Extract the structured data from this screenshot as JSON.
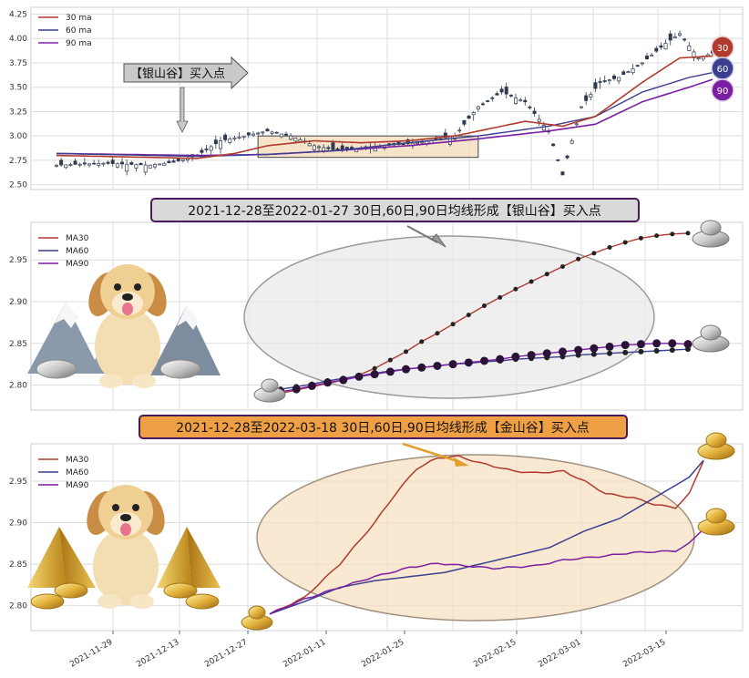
{
  "chart_data": [
    {
      "type": "candlestick",
      "legend": {
        "placement": "top-left",
        "entries": [
          "30 ma",
          "60 ma",
          "90 ma"
        ]
      },
      "y_ticks": [
        "4.25",
        "4.00",
        "3.75",
        "3.50",
        "3.25",
        "3.00",
        "2.75",
        "2.50"
      ],
      "ylim": [
        2.45,
        4.32
      ],
      "grid": true,
      "annotation": "【银山谷】买入点",
      "badges": [
        "30",
        "60",
        "90"
      ],
      "series_colors": {
        "ma30": "#b03a2e",
        "ma60": "#3b3f8f",
        "ma90": "#7a1fa2"
      },
      "n": 140,
      "close_anchors": [
        [
          0,
          2.7
        ],
        [
          10,
          2.72
        ],
        [
          20,
          2.7
        ],
        [
          25,
          2.73
        ],
        [
          30,
          2.8
        ],
        [
          35,
          2.95
        ],
        [
          40,
          3.0
        ],
        [
          45,
          3.05
        ],
        [
          50,
          3.0
        ],
        [
          55,
          2.9
        ],
        [
          60,
          2.85
        ],
        [
          65,
          2.87
        ],
        [
          70,
          2.9
        ],
        [
          75,
          2.92
        ],
        [
          80,
          2.95
        ],
        [
          85,
          3.0
        ],
        [
          90,
          3.3
        ],
        [
          95,
          3.45
        ],
        [
          100,
          3.35
        ],
        [
          105,
          3.05
        ],
        [
          108,
          2.6
        ],
        [
          112,
          3.3
        ],
        [
          116,
          3.55
        ],
        [
          120,
          3.6
        ],
        [
          125,
          3.75
        ],
        [
          130,
          3.95
        ],
        [
          133,
          4.05
        ],
        [
          137,
          3.8
        ],
        [
          140,
          3.85
        ]
      ],
      "ma30_anchors": [
        [
          0,
          2.8
        ],
        [
          20,
          2.78
        ],
        [
          30,
          2.77
        ],
        [
          38,
          2.82
        ],
        [
          45,
          2.9
        ],
        [
          55,
          2.95
        ],
        [
          65,
          2.93
        ],
        [
          75,
          2.95
        ],
        [
          85,
          3.0
        ],
        [
          90,
          3.05
        ],
        [
          100,
          3.15
        ],
        [
          108,
          3.1
        ],
        [
          115,
          3.2
        ],
        [
          125,
          3.55
        ],
        [
          133,
          3.8
        ],
        [
          140,
          3.82
        ]
      ],
      "ma60_anchors": [
        [
          0,
          2.82
        ],
        [
          30,
          2.79
        ],
        [
          45,
          2.81
        ],
        [
          60,
          2.85
        ],
        [
          75,
          2.93
        ],
        [
          90,
          3.0
        ],
        [
          105,
          3.1
        ],
        [
          115,
          3.2
        ],
        [
          125,
          3.45
        ],
        [
          135,
          3.6
        ],
        [
          140,
          3.65
        ]
      ],
      "ma90_anchors": [
        [
          0,
          2.82
        ],
        [
          30,
          2.8
        ],
        [
          45,
          2.81
        ],
        [
          60,
          2.85
        ],
        [
          75,
          2.9
        ],
        [
          90,
          2.97
        ],
        [
          105,
          3.05
        ],
        [
          115,
          3.12
        ],
        [
          125,
          3.35
        ],
        [
          135,
          3.5
        ],
        [
          140,
          3.58
        ]
      ],
      "highlight_box": {
        "x_from": 43,
        "x_to": 90,
        "y_from": 2.78,
        "y_to": 3.0
      }
    },
    {
      "type": "line",
      "title": "2021-12-28至2022-01-27 30日,60日,90日均线形成【银山谷】买入点",
      "legend": {
        "placement": "top-left",
        "entries": [
          "MA30",
          "MA60",
          "MA90"
        ]
      },
      "y_ticks": [
        "2.95",
        "2.90",
        "2.85",
        "2.80"
      ],
      "ylim": [
        2.77,
        2.995
      ],
      "grid": true,
      "series": [
        {
          "name": "MA30",
          "color": "#b03a2e",
          "values": [
            2.79,
            2.794,
            2.798,
            2.802,
            2.806,
            2.812,
            2.82,
            2.83,
            2.84,
            2.852,
            2.862,
            2.873,
            2.884,
            2.895,
            2.905,
            2.915,
            2.924,
            2.933,
            2.942,
            2.951,
            2.958,
            2.965,
            2.971,
            2.976,
            2.979,
            2.981,
            2.982
          ]
        },
        {
          "name": "MA60",
          "color": "#3b3f8f",
          "values": [
            2.795,
            2.798,
            2.801,
            2.805,
            2.808,
            2.811,
            2.814,
            2.817,
            2.819,
            2.821,
            2.823,
            2.825,
            2.826,
            2.828,
            2.829,
            2.831,
            2.832,
            2.833,
            2.834,
            2.836,
            2.837,
            2.838,
            2.839,
            2.84,
            2.841,
            2.842,
            2.843
          ]
        },
        {
          "name": "MA90",
          "color": "#7a1fa2",
          "values": [
            2.792,
            2.795,
            2.799,
            2.803,
            2.806,
            2.81,
            2.813,
            2.816,
            2.819,
            2.821,
            2.823,
            2.825,
            2.827,
            2.829,
            2.831,
            2.834,
            2.836,
            2.838,
            2.84,
            2.842,
            2.844,
            2.846,
            2.848,
            2.849,
            2.85,
            2.85,
            2.849
          ]
        }
      ]
    },
    {
      "type": "line",
      "title": "2021-12-28至2022-03-18 30日,60日,90日均线形成【金山谷】买入点",
      "legend": {
        "placement": "top-left",
        "entries": [
          "MA30",
          "MA60",
          "MA90"
        ]
      },
      "y_ticks": [
        "2.95",
        "2.90",
        "2.85",
        "2.80"
      ],
      "ylim": [
        2.77,
        2.995
      ],
      "grid": true,
      "x_ticks": [
        "2021-11-29",
        "2021-12-13",
        "2021-12-27",
        "2022-01-11",
        "2022-01-25",
        "2022-02-15",
        "2022-03-01",
        "2022-03-15"
      ],
      "series": [
        {
          "name": "MA30",
          "color": "#b03a2e",
          "anchors": [
            [
              0,
              2.79
            ],
            [
              5,
              2.81
            ],
            [
              10,
              2.85
            ],
            [
              15,
              2.9
            ],
            [
              18,
              2.935
            ],
            [
              21,
              2.965
            ],
            [
              24,
              2.978
            ],
            [
              27,
              2.98
            ],
            [
              30,
              2.972
            ],
            [
              35,
              2.962
            ],
            [
              38,
              2.96
            ],
            [
              42,
              2.962
            ],
            [
              45,
              2.95
            ],
            [
              48,
              2.935
            ],
            [
              52,
              2.93
            ],
            [
              55,
              2.922
            ],
            [
              58,
              2.918
            ],
            [
              60,
              2.935
            ],
            [
              62,
              2.975
            ]
          ]
        },
        {
          "name": "MA60",
          "color": "#3b3f8f",
          "anchors": [
            [
              0,
              2.79
            ],
            [
              5,
              2.805
            ],
            [
              10,
              2.822
            ],
            [
              15,
              2.83
            ],
            [
              20,
              2.835
            ],
            [
              25,
              2.84
            ],
            [
              30,
              2.85
            ],
            [
              35,
              2.86
            ],
            [
              40,
              2.87
            ],
            [
              45,
              2.89
            ],
            [
              50,
              2.905
            ],
            [
              55,
              2.93
            ],
            [
              58,
              2.945
            ],
            [
              60,
              2.955
            ],
            [
              62,
              2.975
            ]
          ]
        },
        {
          "name": "MA90",
          "color": "#7a1fa2",
          "anchors": [
            [
              0,
              2.79
            ],
            [
              5,
              2.808
            ],
            [
              10,
              2.822
            ],
            [
              15,
              2.835
            ],
            [
              20,
              2.846
            ],
            [
              24,
              2.851
            ],
            [
              28,
              2.848
            ],
            [
              32,
              2.845
            ],
            [
              38,
              2.848
            ],
            [
              42,
              2.855
            ],
            [
              48,
              2.86
            ],
            [
              52,
              2.864
            ],
            [
              58,
              2.866
            ],
            [
              60,
              2.875
            ],
            [
              62,
              2.893
            ]
          ]
        }
      ]
    }
  ]
}
